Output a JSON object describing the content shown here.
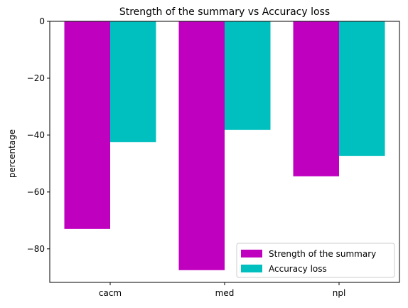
{
  "chart_data": {
    "type": "bar",
    "title": "Strength of the summary vs Accuracy loss",
    "xlabel": "",
    "ylabel": "percentage",
    "categories": [
      "cacm",
      "med",
      "npl"
    ],
    "series": [
      {
        "name": "Strength of the summary",
        "values": [
          -73.0,
          -87.5,
          -54.5
        ],
        "color": "#bf00bf"
      },
      {
        "name": "Accuracy loss",
        "values": [
          -42.5,
          -38.2,
          -47.3
        ],
        "color": "#00bfbf"
      }
    ],
    "ylim": [
      -91.8,
      0
    ],
    "yticks": [
      0,
      -20,
      -40,
      -60,
      -80
    ],
    "ytick_labels": [
      "0",
      "−20",
      "−40",
      "−60",
      "−80"
    ],
    "grid": false,
    "legend_position": "lower-right"
  }
}
